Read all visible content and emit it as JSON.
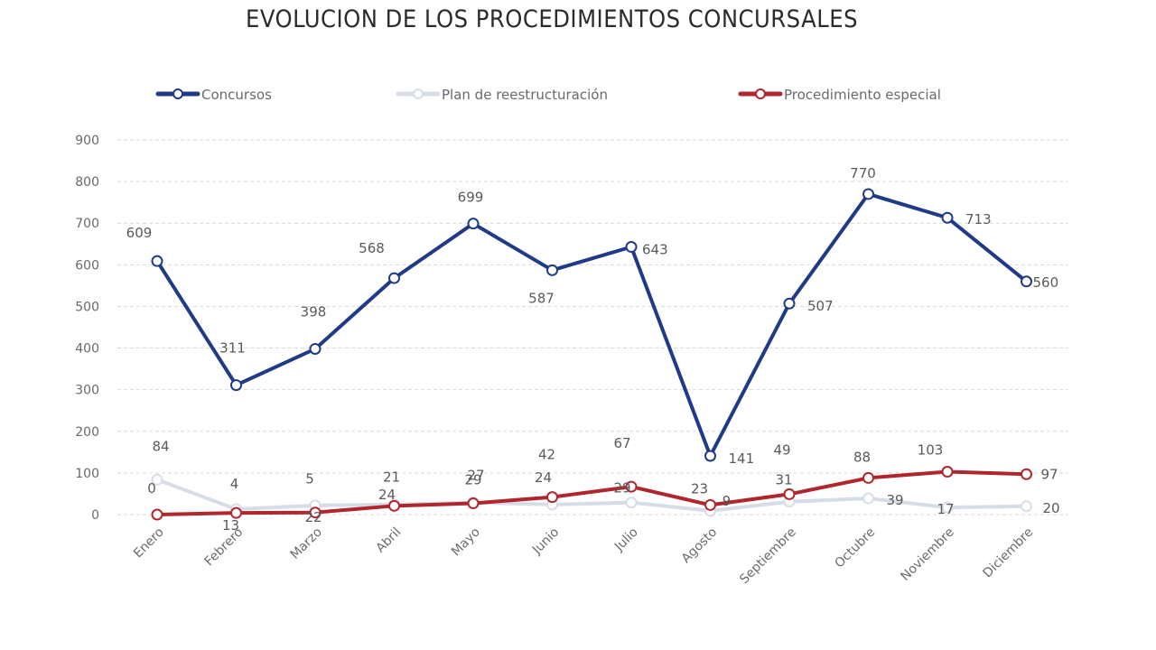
{
  "chart_data": {
    "type": "line",
    "title": "EVOLUCION DE LOS PROCEDIMIENTOS CONCURSALES",
    "xlabel": "",
    "ylabel": "",
    "ylim": [
      0,
      900
    ],
    "yticks": [
      0,
      100,
      200,
      300,
      400,
      500,
      600,
      700,
      800,
      900
    ],
    "grid": true,
    "legend_position": "top",
    "categories": [
      "Enero",
      "Febrero",
      "Marzo",
      "Abril",
      "Mayo",
      "Junio",
      "Julio",
      "Agosto",
      "Septiembre",
      "Octubre",
      "Noviembre",
      "Diciembre"
    ],
    "series": [
      {
        "name": "Concursos",
        "color": "#1f3b87",
        "values": [
          609,
          311,
          398,
          568,
          699,
          587,
          643,
          141,
          507,
          770,
          713,
          560
        ]
      },
      {
        "name": "Plan de reestructuración",
        "color": "#d6dde9",
        "values": [
          84,
          13,
          22,
          24,
          29,
          24,
          29,
          9,
          31,
          39,
          17,
          20
        ]
      },
      {
        "name": "Procedimiento especial",
        "color": "#b0262c",
        "values": [
          0,
          4,
          5,
          21,
          27,
          42,
          67,
          23,
          49,
          88,
          103,
          97
        ]
      }
    ]
  }
}
